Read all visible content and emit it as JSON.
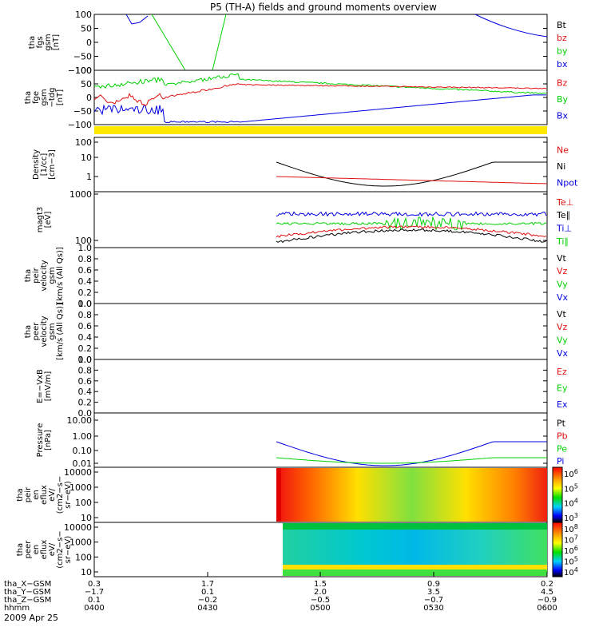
{
  "title": "P5 (TH-A) fields and ground moments overview",
  "date_label": "2009 Apr 25",
  "colors": {
    "black": "#000000",
    "red": "#e01010",
    "green": "#00d000",
    "blue": "#0000e0",
    "yellow": "#ffe800"
  },
  "chart_data": [
    {
      "type": "line",
      "id": "fgs",
      "ylabel_lines": [
        "tha",
        "fgs",
        "gsm",
        "[nT]"
      ],
      "yticks": [
        "100",
        "50",
        "0",
        "−50",
        "−100"
      ],
      "ylim": [
        -100,
        100
      ],
      "legend": [
        {
          "label": "Bt",
          "color": "black"
        },
        {
          "label": "bz",
          "color": "red"
        },
        {
          "label": "by",
          "color": "green"
        },
        {
          "label": "bx",
          "color": "blue"
        }
      ]
    },
    {
      "type": "line",
      "id": "fge",
      "ylabel_lines": [
        "tha",
        "fge",
        "gsm",
        "−tdg",
        "[nT]"
      ],
      "yticks": [
        "100",
        "50",
        "0",
        "−50",
        "−100"
      ],
      "ylim": [
        -120,
        100
      ],
      "legend": [
        {
          "label": "Bz",
          "color": "red"
        },
        {
          "label": "By",
          "color": "green"
        },
        {
          "label": "Bx",
          "color": "blue"
        }
      ]
    },
    {
      "type": "line",
      "id": "density",
      "ylabel_lines": [
        "Density",
        "[1/cc]",
        "[cm−3]"
      ],
      "yticks": [
        "100",
        "10",
        "1"
      ],
      "log": true,
      "legend": [
        {
          "label": "Ne",
          "color": "red"
        },
        {
          "label": "Ni",
          "color": "black"
        },
        {
          "label": "Npot",
          "color": "blue"
        }
      ]
    },
    {
      "type": "line",
      "id": "temp",
      "ylabel_lines": [
        "magt3",
        "[eV]"
      ],
      "yticks": [
        "1000",
        "100"
      ],
      "log": true,
      "legend": [
        {
          "label": "Te⊥",
          "color": "red"
        },
        {
          "label": "Te∥",
          "color": "black"
        },
        {
          "label": "Ti⊥",
          "color": "blue"
        },
        {
          "label": "Ti∥",
          "color": "green"
        }
      ]
    },
    {
      "type": "line",
      "id": "peir_vel",
      "ylabel_lines": [
        "tha",
        "peir",
        "velocity",
        "gsm",
        "[km/s (All Qs)]"
      ],
      "yticks": [
        "1.0",
        "0.8",
        "0.6",
        "0.4",
        "0.2",
        "0.0"
      ],
      "ylim": [
        0,
        1
      ],
      "legend": [
        {
          "label": "Vt",
          "color": "black"
        },
        {
          "label": "Vz",
          "color": "red"
        },
        {
          "label": "Vy",
          "color": "green"
        },
        {
          "label": "Vx",
          "color": "blue"
        }
      ]
    },
    {
      "type": "line",
      "id": "peer_vel",
      "ylabel_lines": [
        "tha",
        "peer",
        "velocity",
        "gsm",
        "[km/s (All Qs)]"
      ],
      "yticks": [
        "1.0",
        "0.8",
        "0.6",
        "0.4",
        "0.2",
        "0.0"
      ],
      "ylim": [
        0,
        1
      ],
      "legend": [
        {
          "label": "Vt",
          "color": "black"
        },
        {
          "label": "Vz",
          "color": "red"
        },
        {
          "label": "Vy",
          "color": "green"
        },
        {
          "label": "Vx",
          "color": "blue"
        }
      ]
    },
    {
      "type": "line",
      "id": "efield",
      "ylabel_lines": [
        "E=−VxB",
        "[mV/m]"
      ],
      "yticks": [
        "1.0",
        "0.8",
        "0.6",
        "0.4",
        "0.2",
        "0.0"
      ],
      "ylim": [
        0,
        1
      ],
      "legend": [
        {
          "label": "Ez",
          "color": "red"
        },
        {
          "label": "Ey",
          "color": "green"
        },
        {
          "label": "Ex",
          "color": "blue"
        }
      ]
    },
    {
      "type": "line",
      "id": "pressure",
      "ylabel_lines": [
        "Pressure",
        "[nPa]"
      ],
      "yticks": [
        "10.00",
        "1.00",
        "0.10",
        "0.01"
      ],
      "log": true,
      "legend": [
        {
          "label": "Pt",
          "color": "black"
        },
        {
          "label": "Pb",
          "color": "red"
        },
        {
          "label": "Pe",
          "color": "green"
        },
        {
          "label": "Pi",
          "color": "blue"
        }
      ]
    },
    {
      "type": "heatmap",
      "id": "peir_flux",
      "ylabel_lines": [
        "tha",
        "peir",
        "en",
        "eflux",
        "eV/",
        "(cm2−s−",
        "sr−eV)"
      ],
      "yticks": [
        "10000",
        "1000",
        "100",
        "10"
      ],
      "colorbar_ticks": [
        {
          "base": "10",
          "exp": "6"
        },
        {
          "base": "10",
          "exp": "5"
        },
        {
          "base": "10",
          "exp": "4"
        },
        {
          "base": "10",
          "exp": "3"
        }
      ]
    },
    {
      "type": "heatmap",
      "id": "peer_flux",
      "ylabel_lines": [
        "tha",
        "peer",
        "en",
        "eflux",
        "eV/",
        "(cm2−s−",
        "sr−eV)"
      ],
      "yticks": [
        "10000",
        "1000",
        "100",
        "10"
      ],
      "colorbar_ticks": [
        {
          "base": "10",
          "exp": "8"
        },
        {
          "base": "10",
          "exp": "7"
        },
        {
          "base": "10",
          "exp": "6"
        },
        {
          "base": "10",
          "exp": "5"
        },
        {
          "base": "10",
          "exp": "4"
        }
      ]
    }
  ],
  "x_axis": {
    "row_labels": [
      "tha_X−GSM",
      "tha_Y−GSM",
      "tha_Z−GSM",
      "hhmm"
    ],
    "columns": [
      {
        "values": [
          "0.3",
          "−1.7",
          "0.1",
          "0400"
        ]
      },
      {
        "values": [
          "1.7",
          "0.1",
          "−0.2",
          "0430"
        ]
      },
      {
        "values": [
          "1.5",
          "2.0",
          "−0.5",
          "0500"
        ]
      },
      {
        "values": [
          "0.9",
          "3.5",
          "−0.7",
          "0530"
        ]
      },
      {
        "values": [
          "0.2",
          "4.5",
          "−0.9",
          "0600"
        ]
      }
    ]
  }
}
